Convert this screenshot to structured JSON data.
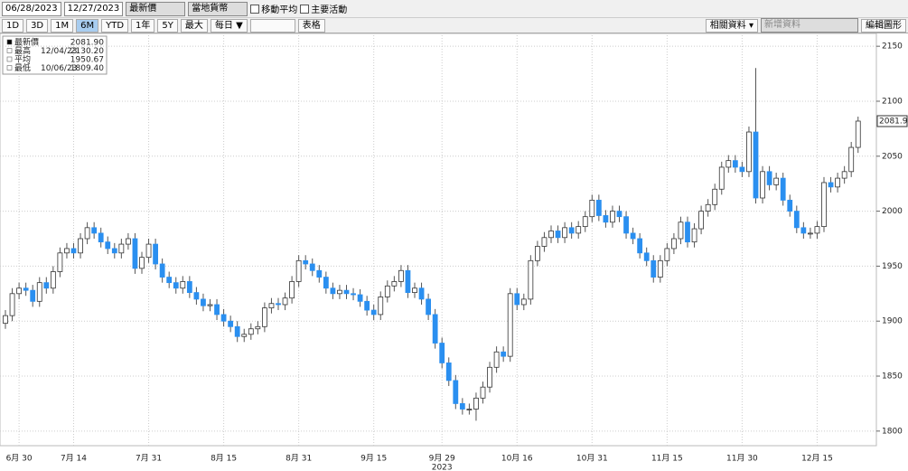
{
  "toolbar": {
    "start_date": "06/28/2023",
    "end_date": "12/27/2023",
    "field": "最新價",
    "currency": "當地貨幣",
    "checks": [
      "移動平均",
      "主要活動"
    ],
    "periods": [
      "1D",
      "3D",
      "1M",
      "6M",
      "YTD",
      "1年",
      "5Y",
      "最大"
    ],
    "selected_period": "6M",
    "frequency": "每日 ▼",
    "table": "表格",
    "related": "相關資料 ▾",
    "add": "新增資料",
    "edit": "編輯圖形"
  },
  "chart_data": {
    "type": "candlestick",
    "up_color": "#ffffff",
    "down_color": "#2a8ff0",
    "grid": true,
    "year_label": "2023",
    "stats": [
      {
        "label": "最新價",
        "value": "2081.90"
      },
      {
        "label": "最高",
        "date": "12/04/23",
        "value": "2130.20"
      },
      {
        "label": "平均",
        "value": "1950.67"
      },
      {
        "label": "最低",
        "date": "10/06/23",
        "value": "1809.40"
      }
    ],
    "ylim": [
      1790,
      2160
    ],
    "yticks": [
      1800,
      1850,
      1900,
      1950,
      2000,
      2050,
      2100,
      2150
    ],
    "categories": [
      null,
      null,
      "6月 30",
      null,
      null,
      null,
      null,
      null,
      null,
      null,
      "7月 14",
      null,
      null,
      null,
      null,
      null,
      null,
      null,
      null,
      null,
      null,
      "7月 31",
      null,
      null,
      null,
      null,
      null,
      null,
      null,
      null,
      null,
      null,
      "8月 15",
      null,
      null,
      null,
      null,
      null,
      null,
      null,
      null,
      null,
      null,
      "8月 31",
      null,
      null,
      null,
      null,
      null,
      null,
      null,
      null,
      null,
      null,
      "9月 15",
      null,
      null,
      null,
      null,
      null,
      null,
      null,
      null,
      null,
      "9月 29",
      null,
      null,
      null,
      null,
      null,
      null,
      null,
      null,
      null,
      null,
      "10月 16",
      null,
      null,
      null,
      null,
      null,
      null,
      null,
      null,
      null,
      null,
      "10月 31",
      null,
      null,
      null,
      null,
      null,
      null,
      null,
      null,
      null,
      null,
      "11月 15",
      null,
      null,
      null,
      null,
      null,
      null,
      null,
      null,
      null,
      null,
      "11月 30",
      null,
      null,
      null,
      null,
      null,
      null,
      null,
      null,
      null,
      null,
      "12月 15",
      null,
      null,
      null,
      null,
      null,
      null
    ],
    "open": [
      1898,
      1905,
      1925,
      1930,
      1928,
      1918,
      1935,
      1930,
      1945,
      1962,
      1966,
      1962,
      1975,
      1985,
      1980,
      1972,
      1966,
      1962,
      1970,
      1975,
      1948,
      1958,
      1970,
      1952,
      1940,
      1935,
      1930,
      1936,
      1926,
      1920,
      1914,
      1915,
      1906,
      1900,
      1895,
      1886,
      1888,
      1893,
      1895,
      1912,
      1916,
      1915,
      1921,
      1936,
      1955,
      1952,
      1946,
      1940,
      1930,
      1925,
      1928,
      1925,
      1924,
      1918,
      1910,
      1906,
      1922,
      1932,
      1936,
      1946,
      1926,
      1930,
      1920,
      1906,
      1880,
      1862,
      1846,
      1825,
      1820,
      1820,
      1830,
      1840,
      1858,
      1872,
      1868,
      1925,
      1915,
      1920,
      1955,
      1968,
      1976,
      1982,
      1976,
      1985,
      1980,
      1986,
      1995,
      2010,
      1996,
      1990,
      2000,
      1995,
      1980,
      1975,
      1962,
      1955,
      1940,
      1955,
      1966,
      1975,
      1990,
      1972,
      1984,
      2000,
      2006,
      2020,
      2040,
      2046,
      2040,
      2036,
      2072,
      2012,
      2036,
      2024,
      2030,
      2010,
      2000,
      1985,
      1980,
      1980,
      1986,
      2026,
      2022,
      2030,
      2036,
      2058
    ],
    "high": [
      1910,
      1930,
      1935,
      1935,
      1933,
      1940,
      1940,
      1950,
      1967,
      1971,
      1971,
      1980,
      1990,
      1990,
      1985,
      1977,
      1971,
      1975,
      1980,
      1980,
      1963,
      1975,
      1975,
      1957,
      1945,
      1940,
      1941,
      1941,
      1931,
      1925,
      1920,
      1920,
      1911,
      1905,
      1900,
      1893,
      1898,
      1900,
      1917,
      1921,
      1921,
      1926,
      1941,
      1960,
      1960,
      1957,
      1951,
      1945,
      1935,
      1933,
      1933,
      1930,
      1929,
      1923,
      1915,
      1927,
      1937,
      1941,
      1951,
      1951,
      1935,
      1935,
      1925,
      1911,
      1885,
      1867,
      1851,
      1830,
      1825,
      1835,
      1845,
      1863,
      1877,
      1877,
      1930,
      1930,
      1925,
      1960,
      1973,
      1981,
      1987,
      1987,
      1990,
      1990,
      1991,
      2000,
      2015,
      2015,
      2001,
      2005,
      2005,
      2000,
      1985,
      1980,
      1967,
      1960,
      1960,
      1971,
      1980,
      1995,
      1995,
      1989,
      2005,
      2011,
      2025,
      2045,
      2051,
      2051,
      2045,
      2077,
      2130.2,
      2041,
      2041,
      2035,
      2035,
      2015,
      2005,
      1990,
      1985,
      1991,
      2031,
      2031,
      2035,
      2041,
      2063,
      2086
    ],
    "low": [
      1893,
      1900,
      1920,
      1923,
      1913,
      1913,
      1925,
      1925,
      1940,
      1957,
      1957,
      1957,
      1970,
      1975,
      1967,
      1961,
      1957,
      1957,
      1965,
      1943,
      1943,
      1953,
      1947,
      1935,
      1930,
      1925,
      1925,
      1921,
      1915,
      1909,
      1909,
      1901,
      1895,
      1890,
      1881,
      1881,
      1883,
      1888,
      1890,
      1907,
      1910,
      1910,
      1916,
      1931,
      1947,
      1941,
      1935,
      1925,
      1920,
      1920,
      1920,
      1919,
      1913,
      1905,
      1901,
      1901,
      1917,
      1927,
      1931,
      1921,
      1921,
      1915,
      1901,
      1875,
      1857,
      1841,
      1820,
      1815,
      1815,
      1809.4,
      1825,
      1835,
      1853,
      1863,
      1863,
      1910,
      1910,
      1915,
      1950,
      1963,
      1971,
      1971,
      1971,
      1975,
      1975,
      1981,
      1990,
      1991,
      1985,
      1985,
      1990,
      1975,
      1970,
      1957,
      1950,
      1935,
      1935,
      1950,
      1961,
      1970,
      1967,
      1967,
      1979,
      1995,
      2001,
      2015,
      2035,
      2035,
      2031,
      2031,
      2007,
      2007,
      2019,
      2019,
      2005,
      1995,
      1980,
      1975,
      1975,
      1975,
      1981,
      2017,
      2017,
      2025,
      2031,
      2053
    ],
    "close": [
      1905,
      1925,
      1930,
      1928,
      1918,
      1935,
      1930,
      1945,
      1962,
      1966,
      1962,
      1975,
      1985,
      1980,
      1972,
      1966,
      1962,
      1970,
      1975,
      1948,
      1958,
      1970,
      1952,
      1940,
      1935,
      1930,
      1936,
      1926,
      1920,
      1914,
      1915,
      1906,
      1900,
      1895,
      1886,
      1888,
      1893,
      1895,
      1912,
      1916,
      1915,
      1921,
      1936,
      1955,
      1952,
      1946,
      1940,
      1930,
      1925,
      1928,
      1925,
      1924,
      1918,
      1910,
      1906,
      1922,
      1932,
      1936,
      1946,
      1926,
      1930,
      1920,
      1906,
      1880,
      1862,
      1846,
      1825,
      1820,
      1820,
      1830,
      1840,
      1858,
      1872,
      1868,
      1925,
      1915,
      1920,
      1955,
      1968,
      1976,
      1982,
      1976,
      1985,
      1980,
      1986,
      1995,
      2010,
      1996,
      1990,
      2000,
      1995,
      1980,
      1975,
      1962,
      1955,
      1940,
      1955,
      1966,
      1975,
      1990,
      1972,
      1984,
      2000,
      2006,
      2020,
      2040,
      2046,
      2040,
      2036,
      2072,
      2012,
      2036,
      2024,
      2030,
      2010,
      2000,
      1985,
      1980,
      1980,
      1986,
      2026,
      2022,
      2030,
      2036,
      2058,
      2081.9
    ]
  }
}
